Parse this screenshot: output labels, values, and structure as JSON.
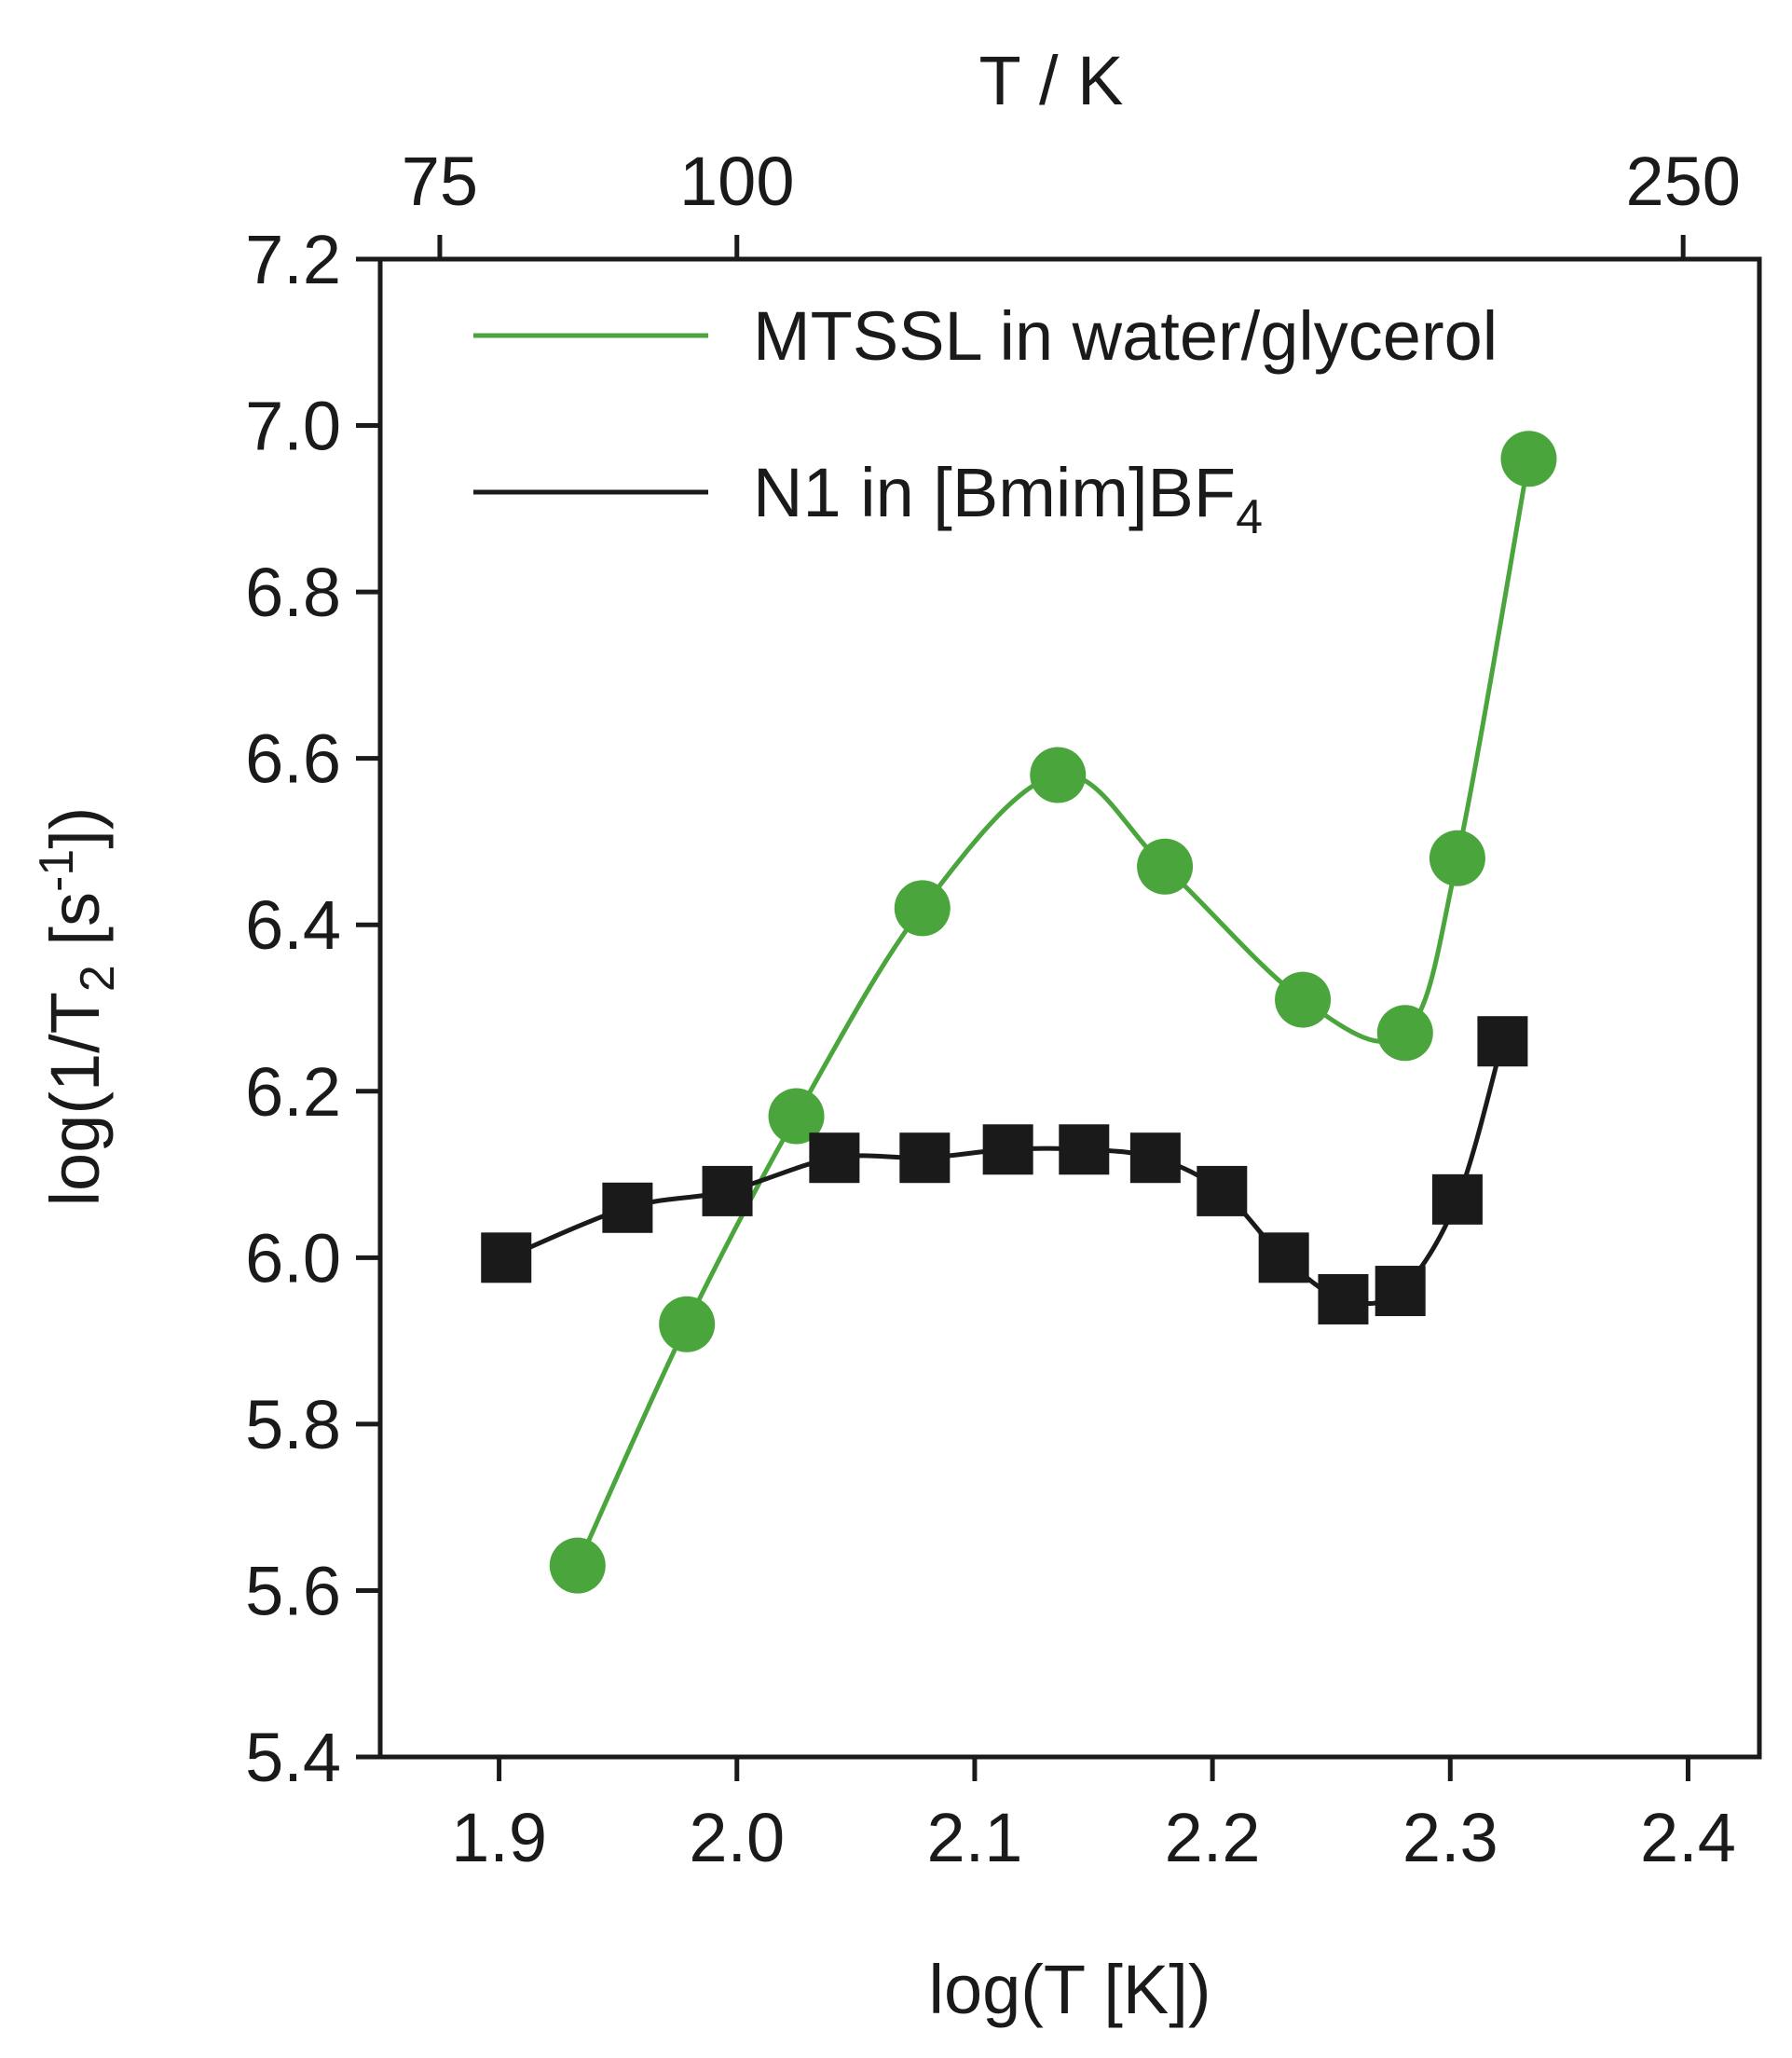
{
  "chart_data": {
    "type": "line",
    "xlabel": "log(T [K])",
    "ylabel_parts": [
      "log(1/T",
      "2",
      " [s",
      "-1",
      "])"
    ],
    "top_xlabel": "T / K",
    "xlim": [
      1.85,
      2.43
    ],
    "ylim": [
      5.4,
      7.2
    ],
    "x_ticks": [
      1.9,
      2.0,
      2.1,
      2.2,
      2.3,
      2.4
    ],
    "x_tick_labels": [
      "1.9",
      "2.0",
      "2.1",
      "2.2",
      "2.3",
      "2.4"
    ],
    "y_ticks": [
      5.4,
      5.6,
      5.8,
      6.0,
      6.2,
      6.4,
      6.6,
      6.8,
      7.0,
      7.2
    ],
    "y_tick_labels": [
      "5.4",
      "5.6",
      "5.8",
      "6.0",
      "6.2",
      "6.4",
      "6.6",
      "6.8",
      "7.0",
      "7.2"
    ],
    "top_ticks": [
      75,
      100,
      250
    ],
    "top_tick_labels": [
      "75",
      "100",
      "250"
    ],
    "series": [
      {
        "name": "MTSSL in water/glycerol",
        "color": "#4aa53c",
        "marker": "circle",
        "x": [
          1.933,
          1.979,
          2.025,
          2.078,
          2.135,
          2.18,
          2.238,
          2.281,
          2.303,
          2.333
        ],
        "y": [
          5.63,
          5.92,
          6.17,
          6.42,
          6.58,
          6.47,
          6.31,
          6.27,
          6.48,
          6.96
        ]
      },
      {
        "name_parts": [
          "N1 in [Bmim]BF",
          "4"
        ],
        "color": "#1a1a1a",
        "marker": "square",
        "x": [
          1.903,
          1.954,
          1.996,
          2.041,
          2.079,
          2.114,
          2.146,
          2.176,
          2.204,
          2.23,
          2.255,
          2.279,
          2.303,
          2.322
        ],
        "y": [
          6.0,
          6.06,
          6.08,
          6.12,
          6.12,
          6.13,
          6.13,
          6.12,
          6.08,
          6.0,
          5.95,
          5.96,
          6.07,
          6.26
        ]
      }
    ],
    "legend_position": "top-right"
  }
}
